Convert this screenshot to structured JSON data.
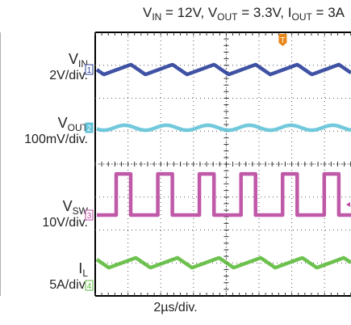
{
  "title": {
    "vin_name": "V",
    "vin_sub": "IN",
    "vin_val": " = 12V, ",
    "vout_name": "V",
    "vout_sub": "OUT",
    "vout_val": " = 3.3V, ",
    "iout_name": "I",
    "iout_sub": "OUT",
    "iout_val": " = 3A"
  },
  "timebase": "2µs/div.",
  "colors": {
    "vin": "#2a3f9a",
    "vout": "#63c3d8",
    "vsw": "#b8479f",
    "il": "#5dbb3c",
    "trigger": "#e8861a",
    "grid": "#000000"
  },
  "chart_data": {
    "type": "line",
    "title": "V_IN = 12V, V_OUT = 3.3V, I_OUT = 3A",
    "x_divisions": 8,
    "y_divisions": 8,
    "x_unit": "2µs/div.",
    "trigger_marker": "T",
    "series": [
      {
        "key": "vin",
        "name": "VIN",
        "name_main": "V",
        "name_sub": "IN",
        "scale": "2V/div.",
        "marker": "1",
        "waveform": "triangle",
        "ripple_div": 0.3,
        "period_div": 1.27
      },
      {
        "key": "vout",
        "name": "VOUT",
        "name_main": "V",
        "name_sub": "OUT",
        "scale": "100mV/div.",
        "marker": "2",
        "waveform": "ripple",
        "ripple_div": 0.15,
        "period_div": 1.27
      },
      {
        "key": "vsw",
        "name": "VSW",
        "name_main": "V",
        "name_sub": "SW",
        "scale": "10V/div.",
        "marker": "3",
        "waveform": "square",
        "high_div": 1.25,
        "duty": 0.35,
        "period_div": 1.27
      },
      {
        "key": "il",
        "name": "IL",
        "name_main": "I",
        "name_sub": "L",
        "scale": "5A/div.",
        "marker": "4",
        "waveform": "triangle",
        "ripple_div": 0.3,
        "period_div": 1.27
      }
    ]
  }
}
